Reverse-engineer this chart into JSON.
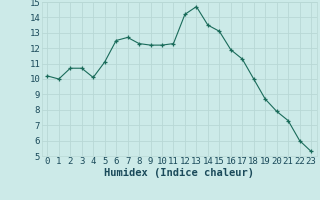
{
  "x": [
    0,
    1,
    2,
    3,
    4,
    5,
    6,
    7,
    8,
    9,
    10,
    11,
    12,
    13,
    14,
    15,
    16,
    17,
    18,
    19,
    20,
    21,
    22,
    23
  ],
  "y": [
    10.2,
    10.0,
    10.7,
    10.7,
    10.1,
    11.1,
    12.5,
    12.7,
    12.3,
    12.2,
    12.2,
    12.3,
    14.2,
    14.7,
    13.5,
    13.1,
    11.9,
    11.3,
    10.0,
    8.7,
    7.9,
    7.3,
    6.0,
    5.3
  ],
  "xlabel": "Humidex (Indice chaleur)",
  "bg_color": "#cceae8",
  "grid_color": "#b8d8d5",
  "line_color": "#1a6b5a",
  "marker_color": "#1a6b5a",
  "ylim": [
    5,
    15
  ],
  "xlim_min": -0.5,
  "xlim_max": 23.5,
  "yticks": [
    5,
    6,
    7,
    8,
    9,
    10,
    11,
    12,
    13,
    14,
    15
  ],
  "xticks": [
    0,
    1,
    2,
    3,
    4,
    5,
    6,
    7,
    8,
    9,
    10,
    11,
    12,
    13,
    14,
    15,
    16,
    17,
    18,
    19,
    20,
    21,
    22,
    23
  ],
  "xtick_labels": [
    "0",
    "1",
    "2",
    "3",
    "4",
    "5",
    "6",
    "7",
    "8",
    "9",
    "10",
    "11",
    "12",
    "13",
    "14",
    "15",
    "16",
    "17",
    "18",
    "19",
    "20",
    "21",
    "22",
    "23"
  ],
  "tick_fontsize": 6.5,
  "xlabel_fontsize": 7.5,
  "tick_color": "#1a4a5a",
  "xlabel_color": "#1a4a5a"
}
